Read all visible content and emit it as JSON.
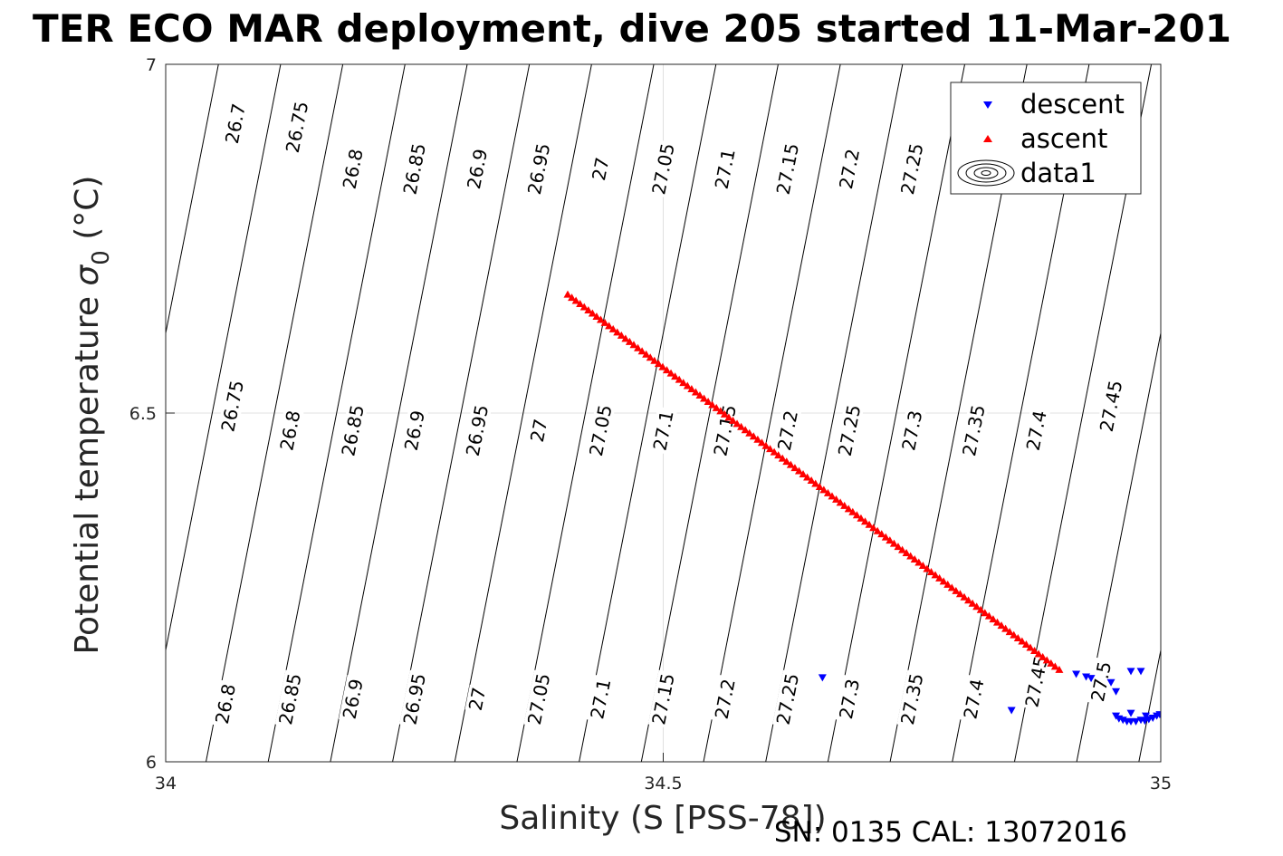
{
  "chart_data": {
    "type": "scatter",
    "title": "TER ECO MAR deployment, dive 205 started 11-Mar-201",
    "xlabel": "Salinity (S [PSS-78])",
    "ylabel_text": "Potential temperature ",
    "ylabel_symbol": "σ",
    "ylabel_sub": "0",
    "ylabel_unit": " (°C)",
    "footer": "SN: 0135  CAL: 13072016",
    "xlim": [
      34,
      35
    ],
    "ylim": [
      6,
      7
    ],
    "xticks": [
      "34",
      "34.5",
      "35"
    ],
    "yticks": [
      "6",
      "6.5",
      "7"
    ],
    "grid": true,
    "legend_position": "top-right",
    "legend": [
      "descent",
      "ascent",
      "data1"
    ],
    "colors": {
      "descent": "#0000ff",
      "ascent": "#ff0000",
      "contour": "#000000",
      "grid": "#e0e0e0"
    },
    "density_contours": {
      "levels": [
        26.7,
        26.75,
        26.8,
        26.85,
        26.9,
        26.95,
        27.0,
        27.05,
        27.1,
        27.15,
        27.2,
        27.25,
        27.3,
        27.35,
        27.4,
        27.45,
        27.5
      ],
      "labels": [
        {
          "text": "26.7",
          "x": 34.07,
          "y": 6.915
        },
        {
          "text": "26.75",
          "x": 34.132,
          "y": 6.91
        },
        {
          "text": "26.8",
          "x": 34.188,
          "y": 6.85
        },
        {
          "text": "26.85",
          "x": 34.25,
          "y": 6.85
        },
        {
          "text": "26.9",
          "x": 34.313,
          "y": 6.85
        },
        {
          "text": "26.95",
          "x": 34.375,
          "y": 6.85
        },
        {
          "text": "27",
          "x": 34.437,
          "y": 6.85
        },
        {
          "text": "27.05",
          "x": 34.5,
          "y": 6.85
        },
        {
          "text": "27.1",
          "x": 34.562,
          "y": 6.85
        },
        {
          "text": "27.15",
          "x": 34.625,
          "y": 6.85
        },
        {
          "text": "27.2",
          "x": 34.687,
          "y": 6.85
        },
        {
          "text": "27.25",
          "x": 34.75,
          "y": 6.85
        },
        {
          "text": "26.75",
          "x": 34.067,
          "y": 6.51
        },
        {
          "text": "26.8",
          "x": 34.125,
          "y": 6.475
        },
        {
          "text": "26.85",
          "x": 34.188,
          "y": 6.475
        },
        {
          "text": "26.9",
          "x": 34.25,
          "y": 6.475
        },
        {
          "text": "26.95",
          "x": 34.313,
          "y": 6.475
        },
        {
          "text": "27",
          "x": 34.375,
          "y": 6.475
        },
        {
          "text": "27.05",
          "x": 34.437,
          "y": 6.475
        },
        {
          "text": "27.1",
          "x": 34.5,
          "y": 6.475
        },
        {
          "text": "27.15",
          "x": 34.562,
          "y": 6.475
        },
        {
          "text": "27.2",
          "x": 34.625,
          "y": 6.475
        },
        {
          "text": "27.25",
          "x": 34.687,
          "y": 6.475
        },
        {
          "text": "27.3",
          "x": 34.75,
          "y": 6.475
        },
        {
          "text": "27.35",
          "x": 34.812,
          "y": 6.475
        },
        {
          "text": "27.4",
          "x": 34.875,
          "y": 6.475
        },
        {
          "text": "27.45",
          "x": 34.95,
          "y": 6.51
        },
        {
          "text": "26.8",
          "x": 34.06,
          "y": 6.083
        },
        {
          "text": "26.85",
          "x": 34.125,
          "y": 6.09
        },
        {
          "text": "26.9",
          "x": 34.188,
          "y": 6.09
        },
        {
          "text": "26.95",
          "x": 34.25,
          "y": 6.09
        },
        {
          "text": "27",
          "x": 34.313,
          "y": 6.09
        },
        {
          "text": "27.05",
          "x": 34.375,
          "y": 6.09
        },
        {
          "text": "27.1",
          "x": 34.437,
          "y": 6.09
        },
        {
          "text": "27.15",
          "x": 34.5,
          "y": 6.09
        },
        {
          "text": "27.2",
          "x": 34.562,
          "y": 6.09
        },
        {
          "text": "27.25",
          "x": 34.625,
          "y": 6.09
        },
        {
          "text": "27.3",
          "x": 34.687,
          "y": 6.09
        },
        {
          "text": "27.35",
          "x": 34.75,
          "y": 6.09
        },
        {
          "text": "27.4",
          "x": 34.812,
          "y": 6.09
        },
        {
          "text": "27.45",
          "x": 34.875,
          "y": 6.115
        },
        {
          "text": "27.5",
          "x": 34.94,
          "y": 6.115
        }
      ]
    },
    "series": [
      {
        "name": "descent",
        "marker": "triangle-down",
        "points": [
          [
            34.66,
            6.121
          ],
          [
            34.85,
            6.074
          ],
          [
            34.915,
            6.126
          ],
          [
            34.925,
            6.122
          ],
          [
            34.93,
            6.12
          ],
          [
            34.95,
            6.114
          ],
          [
            34.955,
            6.101
          ],
          [
            34.955,
            6.066
          ],
          [
            34.958,
            6.062
          ],
          [
            34.962,
            6.06
          ],
          [
            34.966,
            6.058
          ],
          [
            34.97,
            6.058
          ],
          [
            34.975,
            6.058
          ],
          [
            34.98,
            6.06
          ],
          [
            34.984,
            6.059
          ],
          [
            34.988,
            6.061
          ],
          [
            34.992,
            6.063
          ],
          [
            34.996,
            6.066
          ],
          [
            34.999,
            6.068
          ],
          [
            34.97,
            6.07
          ],
          [
            34.985,
            6.066
          ],
          [
            34.97,
            6.13
          ],
          [
            34.98,
            6.13
          ]
        ]
      },
      {
        "name": "ascent",
        "marker": "triangle-up",
        "start": [
          34.404,
          6.67
        ],
        "end": [
          34.898,
          6.132
        ],
        "count": 120
      }
    ]
  }
}
